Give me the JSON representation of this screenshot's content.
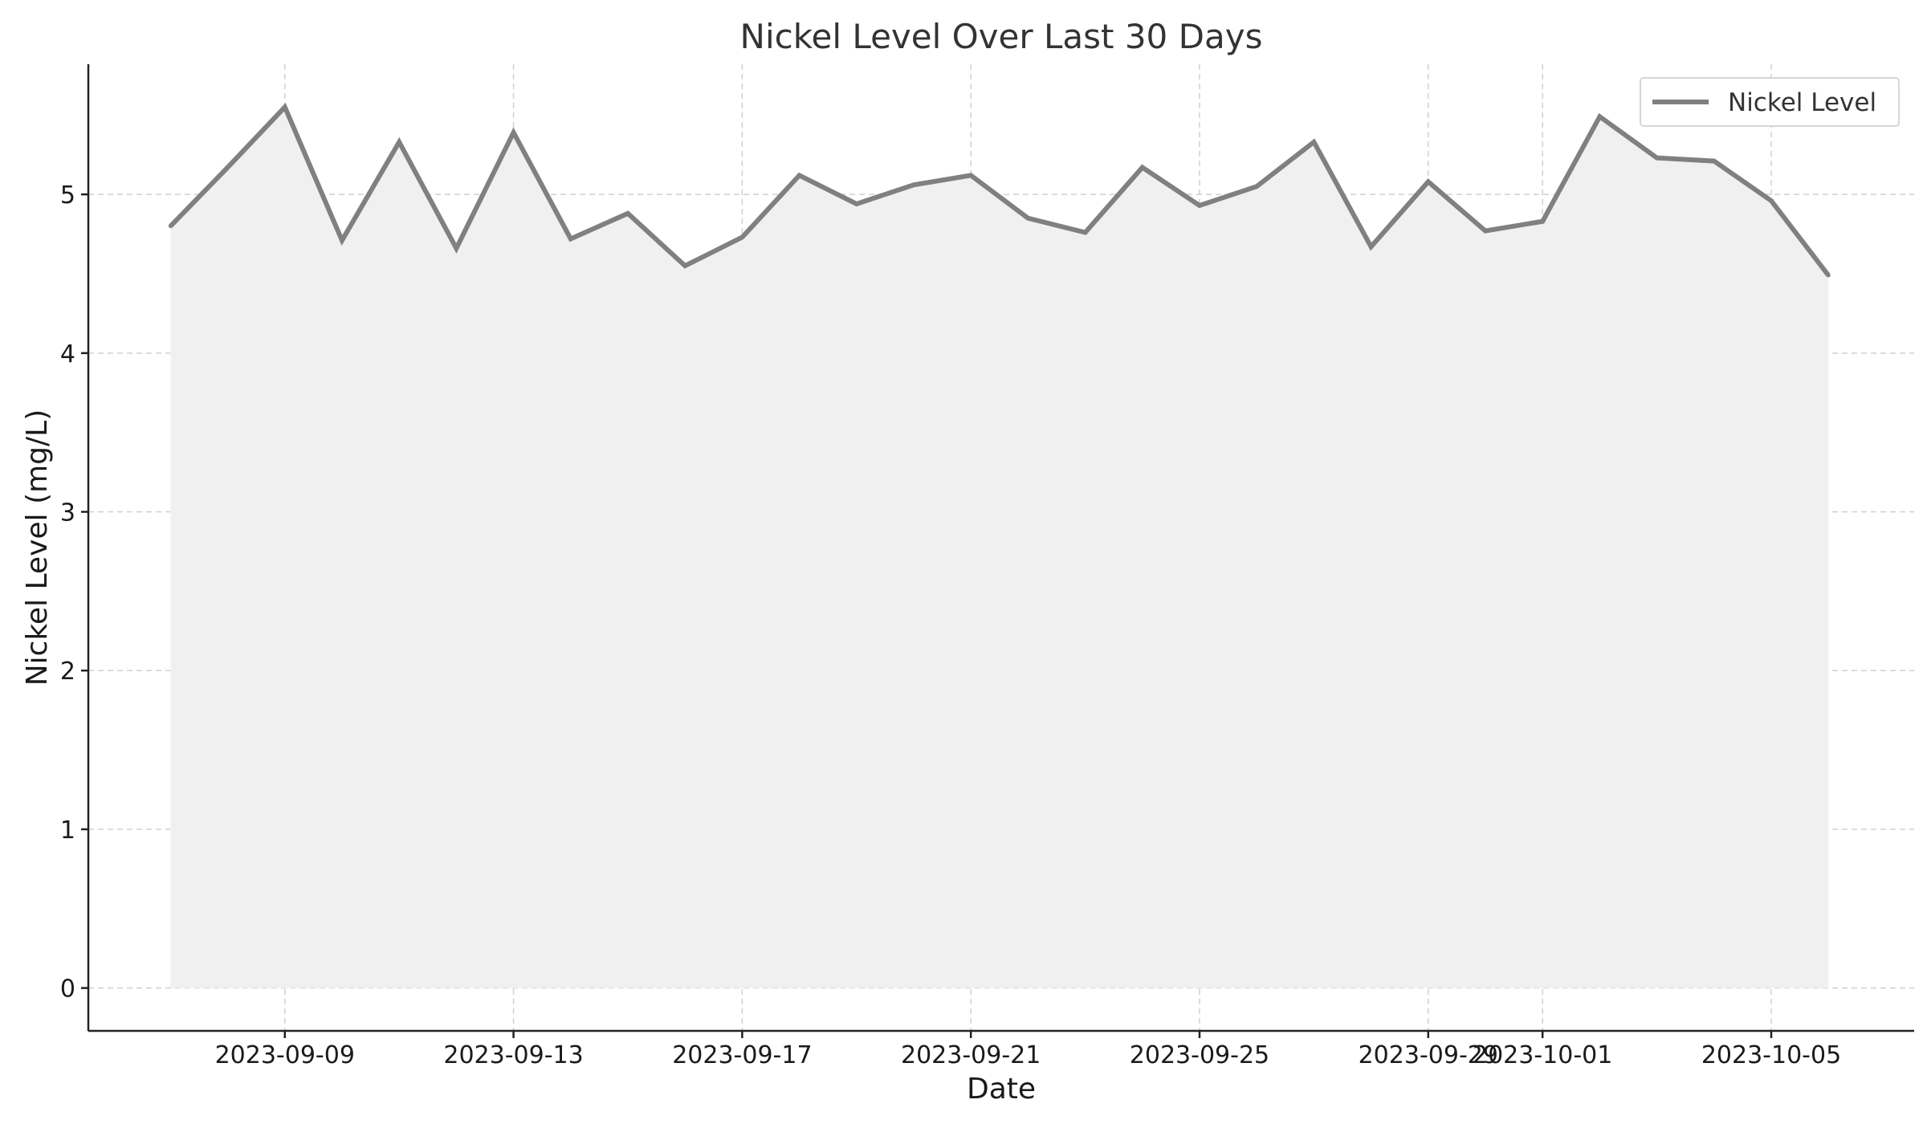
{
  "chart_data": {
    "type": "area",
    "title": "Nickel Level Over Last 30 Days",
    "xlabel": "Date",
    "ylabel": "Nickel Level (mg/L)",
    "x": [
      "2023-09-07",
      "2023-09-08",
      "2023-09-09",
      "2023-09-10",
      "2023-09-11",
      "2023-09-12",
      "2023-09-13",
      "2023-09-14",
      "2023-09-15",
      "2023-09-16",
      "2023-09-17",
      "2023-09-18",
      "2023-09-19",
      "2023-09-20",
      "2023-09-21",
      "2023-09-22",
      "2023-09-23",
      "2023-09-24",
      "2023-09-25",
      "2023-09-26",
      "2023-09-27",
      "2023-09-28",
      "2023-09-29",
      "2023-09-30",
      "2023-10-01",
      "2023-10-02",
      "2023-10-03",
      "2023-10-04",
      "2023-10-05",
      "2023-10-06"
    ],
    "series": [
      {
        "name": "Nickel Level",
        "color": "#808080",
        "fill_color": "#f0f0f0",
        "values": [
          4.8,
          5.17,
          5.55,
          4.71,
          5.33,
          4.66,
          5.39,
          4.72,
          4.88,
          4.55,
          4.73,
          5.12,
          4.94,
          5.06,
          5.12,
          4.85,
          4.76,
          5.17,
          4.93,
          5.05,
          5.33,
          4.67,
          5.08,
          4.77,
          4.83,
          5.49,
          5.23,
          5.21,
          4.96,
          4.49
        ]
      }
    ],
    "xticks": [
      "2023-09-09",
      "2023-09-13",
      "2023-09-17",
      "2023-09-21",
      "2023-09-25",
      "2023-09-29",
      "2023-10-01",
      "2023-10-05"
    ],
    "yticks": [
      0,
      1,
      2,
      3,
      4,
      5
    ],
    "xlim": [
      "2023-09-05T13:30",
      "2023-10-07T12:00"
    ],
    "ylim": [
      -0.27,
      5.82
    ],
    "grid": true,
    "legend_position": "top-right"
  }
}
